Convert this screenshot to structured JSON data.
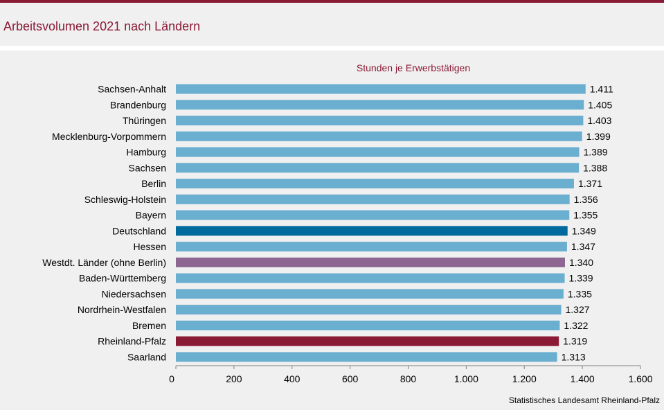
{
  "title": "Arbeitsvolumen 2021 nach Ländern",
  "source": "Statistisches Landesamt Rheinland-Pfalz",
  "colors": {
    "brand": "#8b1a35",
    "bar_default": "#6aaed0",
    "bar_deutschland": "#006a9e",
    "bar_westdt": "#8d6791",
    "bar_rlp": "#8b1a35"
  },
  "chart_data": {
    "type": "bar",
    "orientation": "horizontal",
    "title": "Stunden je Erwerbstätigen",
    "categories": [
      "Sachsen-Anhalt",
      "Brandenburg",
      "Thüringen",
      "Mecklenburg-Vorpommern",
      "Hamburg",
      "Sachsen",
      "Berlin",
      "Schleswig-Holstein",
      "Bayern",
      "Deutschland",
      "Hessen",
      "Westdt. Länder (ohne Berlin)",
      "Baden-Württemberg",
      "Niedersachsen",
      "Nordrhein-Westfalen",
      "Bremen",
      "Rheinland-Pfalz",
      "Saarland"
    ],
    "values": [
      1411,
      1405,
      1403,
      1399,
      1389,
      1388,
      1371,
      1356,
      1355,
      1349,
      1347,
      1340,
      1339,
      1335,
      1327,
      1322,
      1319,
      1313
    ],
    "value_labels": [
      "1.411",
      "1.405",
      "1.403",
      "1.399",
      "1.389",
      "1.388",
      "1.371",
      "1.356",
      "1.355",
      "1.349",
      "1.347",
      "1.340",
      "1.339",
      "1.335",
      "1.327",
      "1.322",
      "1.319",
      "1.313"
    ],
    "highlights": {
      "Deutschland": "bar_deutschland",
      "Westdt. Länder (ohne Berlin)": "bar_westdt",
      "Rheinland-Pfalz": "bar_rlp"
    },
    "xlim": [
      0,
      1600
    ],
    "xticks": [
      0,
      200,
      400,
      600,
      800,
      1000,
      1200,
      1400,
      1600
    ],
    "xtick_labels": [
      "0",
      "200",
      "400",
      "600",
      "800",
      "1.000",
      "1.200",
      "1.400",
      "1.600"
    ],
    "grid": false,
    "legend": "none"
  }
}
